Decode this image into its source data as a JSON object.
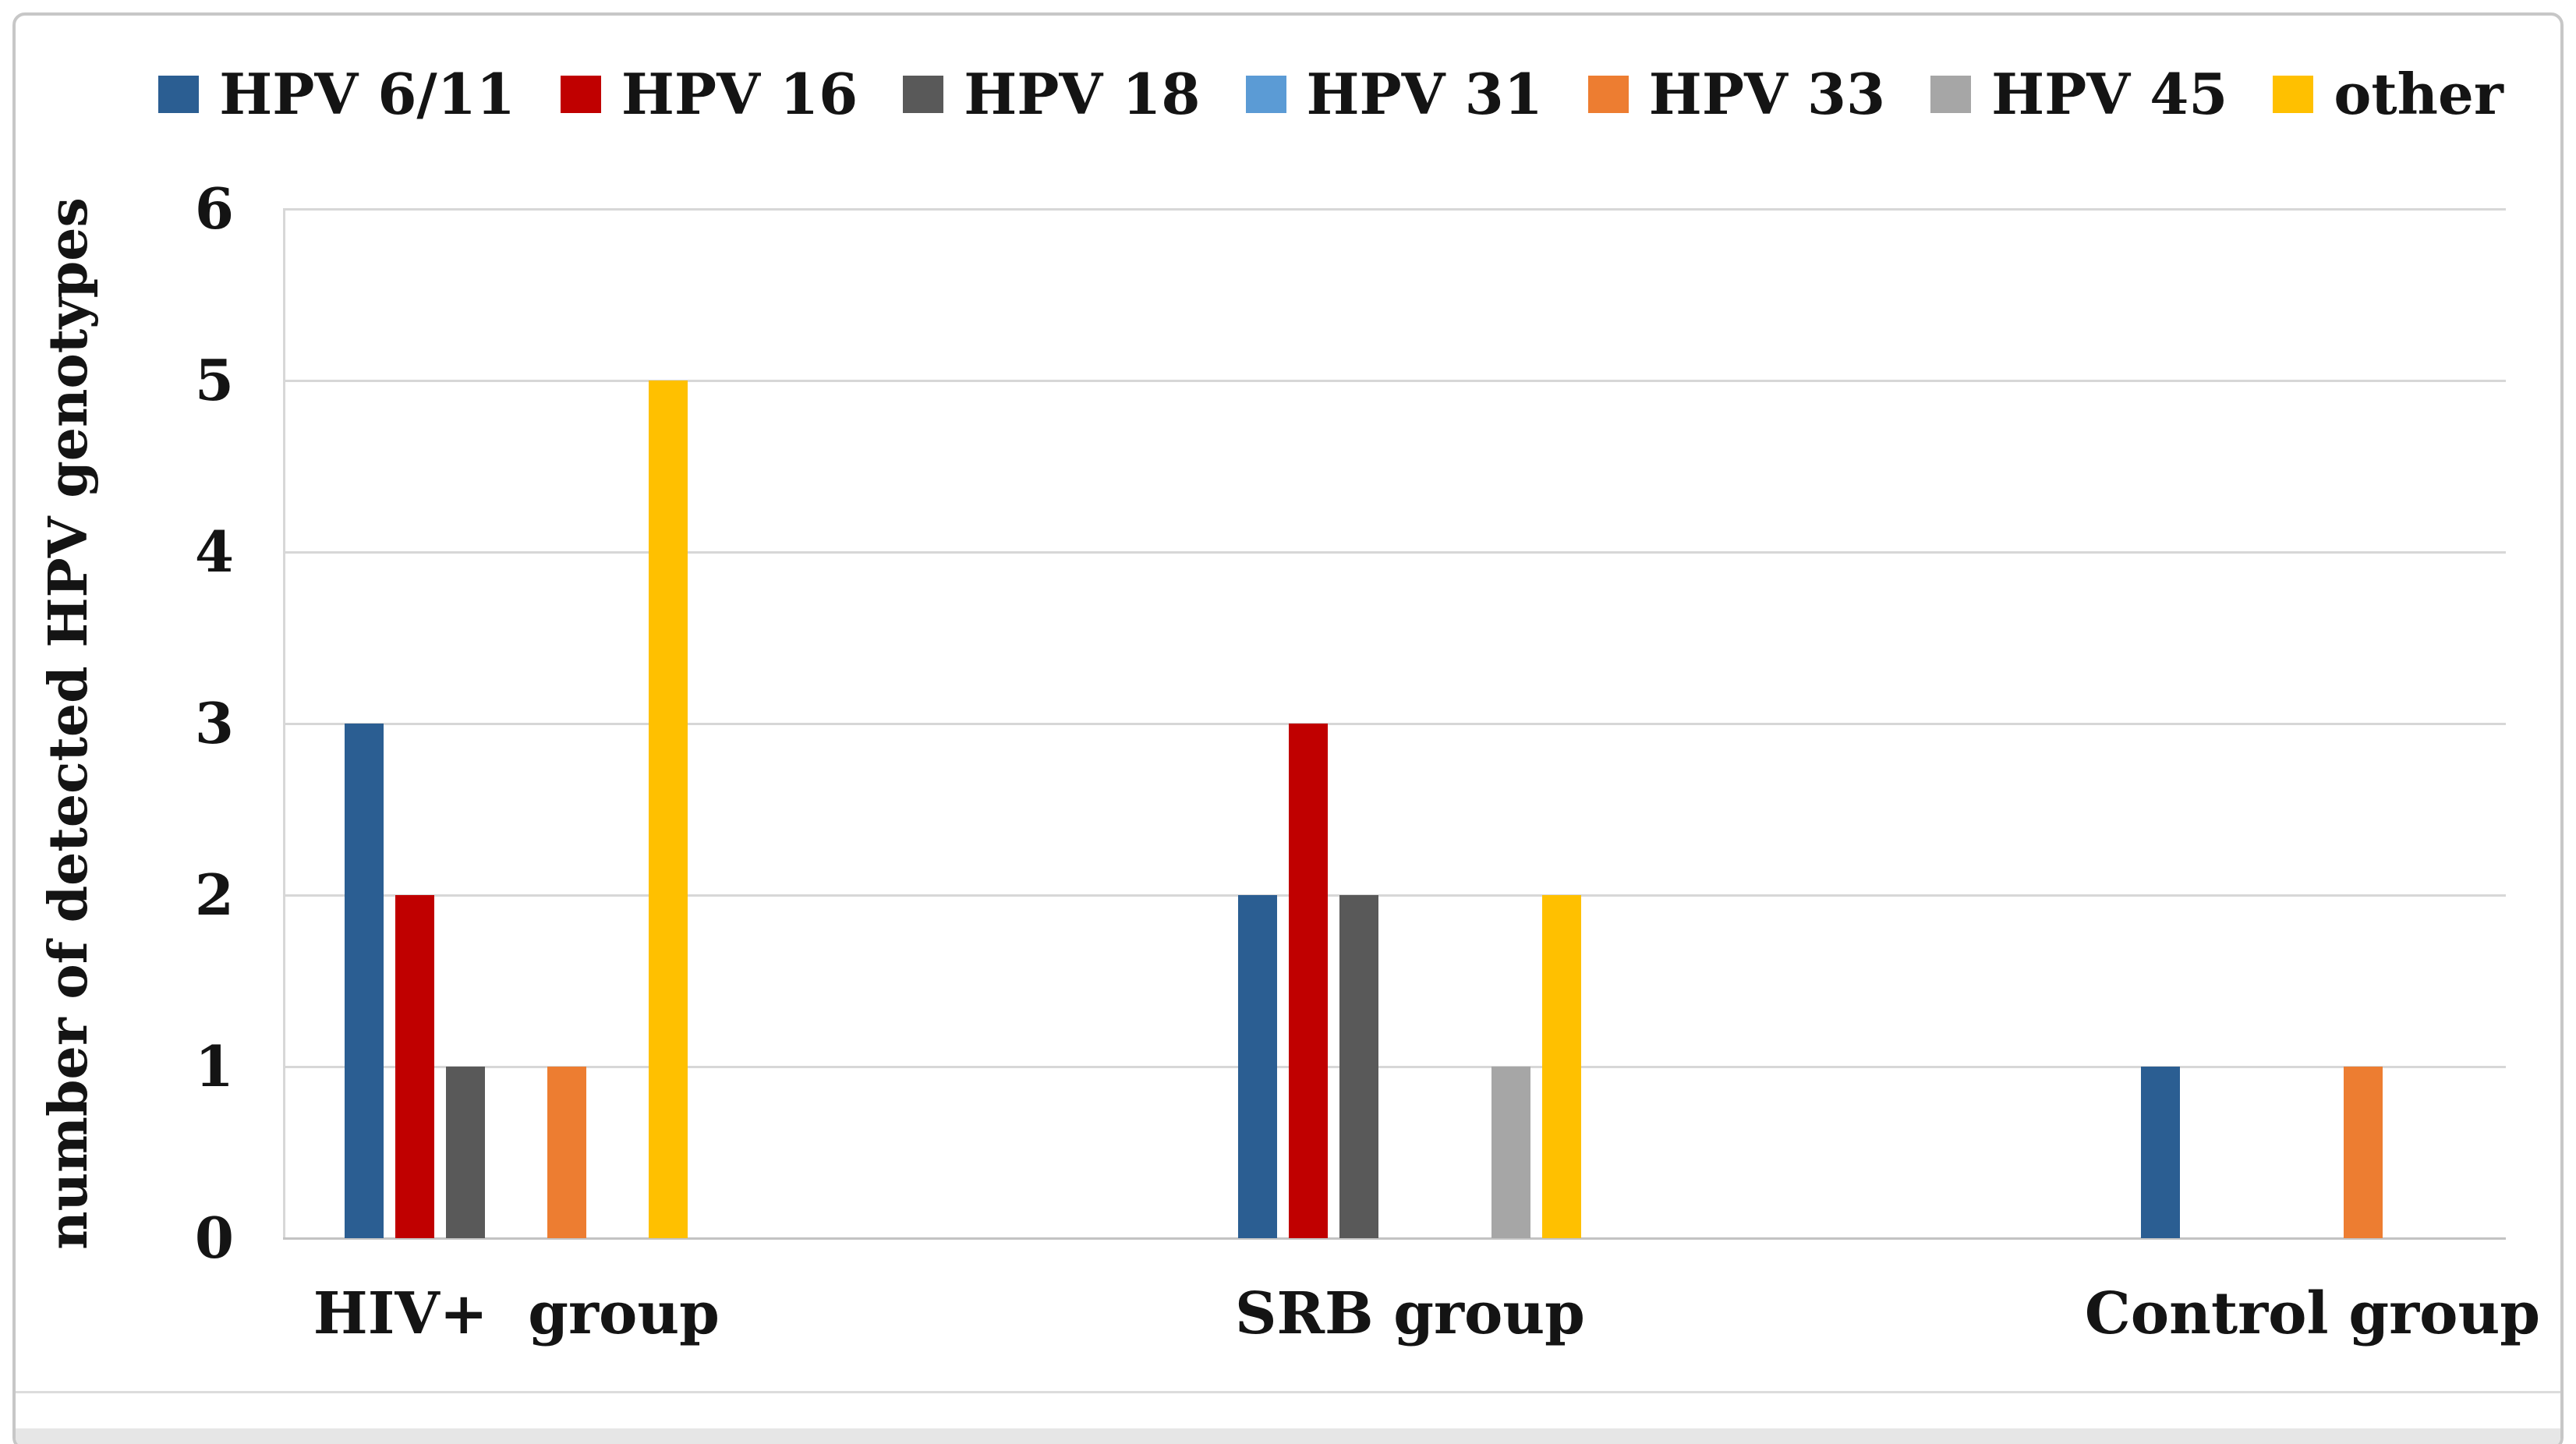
{
  "chart_data": {
    "type": "bar",
    "title": "",
    "xlabel": "",
    "ylabel": "number of detected HPV genotypes",
    "categories": [
      "HIV+  group",
      "SRB group",
      "Control group"
    ],
    "series": [
      {
        "name": "HPV 6/11",
        "color": "#2B5E92",
        "values": [
          3,
          2,
          1
        ]
      },
      {
        "name": "HPV 16",
        "color": "#C00000",
        "values": [
          2,
          3,
          0
        ]
      },
      {
        "name": "HPV 18",
        "color": "#595959",
        "values": [
          1,
          2,
          0
        ]
      },
      {
        "name": "HPV 31",
        "color": "#5B9BD5",
        "values": [
          0,
          0,
          0
        ]
      },
      {
        "name": "HPV 33",
        "color": "#ED7D31",
        "values": [
          1,
          0,
          1
        ]
      },
      {
        "name": "HPV 45",
        "color": "#A6A6A6",
        "values": [
          0,
          1,
          0
        ]
      },
      {
        "name": "other",
        "color": "#FFC000",
        "values": [
          5,
          2,
          0
        ]
      }
    ],
    "yticks": [
      0,
      1,
      2,
      3,
      4,
      5,
      6
    ],
    "ylim": [
      0,
      6
    ],
    "grid": true,
    "legend_position": "top",
    "gridline_color": "#D7D7D7"
  }
}
